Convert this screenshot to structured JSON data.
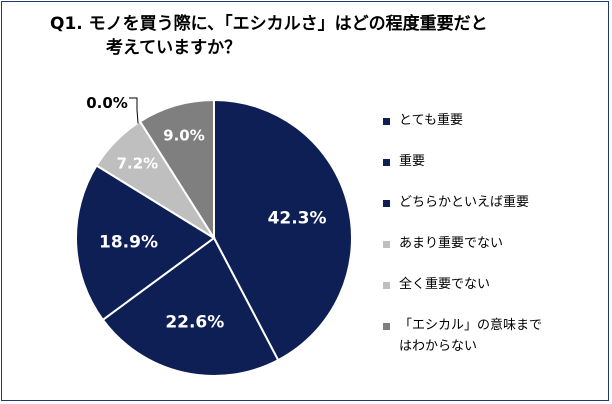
{
  "title": {
    "line1": "Q1. モノを買う際に、「エシカルさ」はどの程度重要だと",
    "line2": "考えていますか？"
  },
  "chart_data": {
    "type": "pie",
    "title": "Q1. モノを買う際に、「エシカルさ」はどの程度重要だと考えていますか？",
    "categories": [
      "とても重要",
      "重要",
      "どちらかといえば重要",
      "あまり重要でない",
      "全く重要でない",
      "「エシカル」の意味まではわからない"
    ],
    "values": [
      42.3,
      22.6,
      18.9,
      7.2,
      0.0,
      9.0
    ],
    "labels": [
      "42.3%",
      "22.6%",
      "18.9%",
      "7.2%",
      "0.0%",
      "9.0%"
    ],
    "colors": [
      "#0e1f56",
      "#0e1f56",
      "#0e1f56",
      "#bfbfbf",
      "#bfbfbf",
      "#7f7f7f"
    ],
    "label_colors": [
      "#ffffff",
      "#ffffff",
      "#ffffff",
      "#ffffff",
      "#000000",
      "#ffffff"
    ],
    "legend_position": "right"
  },
  "legend": {
    "items": [
      {
        "line1": "とても重要",
        "line2": ""
      },
      {
        "line1": "重要",
        "line2": ""
      },
      {
        "line1": "どちらかといえば重要",
        "line2": ""
      },
      {
        "line1": "あまり重要でない",
        "line2": ""
      },
      {
        "line1": "全く重要でない",
        "line2": ""
      },
      {
        "line1": "「エシカル」の意味まで",
        "line2": "はわからない"
      }
    ]
  }
}
